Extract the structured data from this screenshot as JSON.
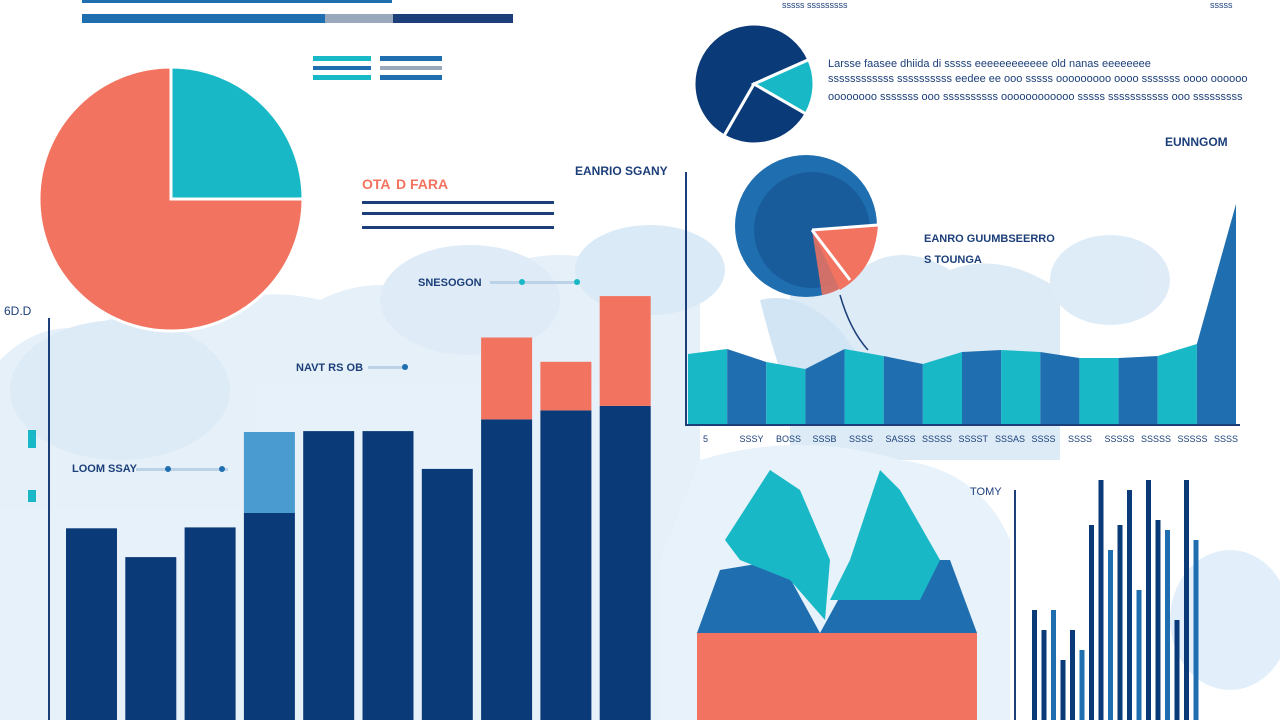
{
  "colors": {
    "navy": "#0b3a78",
    "blue": "#1f6fb0",
    "sky": "#4a9bd0",
    "teal": "#19b8c6",
    "coral": "#f2735f",
    "haze": "#d9e9f6"
  },
  "labels": {
    "top_right_text": "sssss sssssssss",
    "top_right_mark": "sssss",
    "pie_small_text_1": "Larsse faasee dhiida di sssss eeeeeeeeeeee old nanas eeeeeeee",
    "pie_small_text_2": "ssssssssssss ssssssssss eedee ee ooo sssss ooooooooo oooo sssssss oooo oooooo",
    "pie_small_text_3": "oooooooo sssssss ooo ssssssssss oooooooooooo sssss sssssssssss ooo sssssssss",
    "legend_red_title_a": "OTA",
    "legend_red_title_b": "D FARA",
    "mid_title": "EANRIO SGANY",
    "mid_label_1": "SNESOGON",
    "mid_label_2": "NAVT RS OB",
    "left_label": "LOOM SSAY",
    "y_axis_top": "6D.D",
    "area_title": "EUNNGOM",
    "area_label_1": "EANRO GUUMBSEERRO",
    "area_label_2": "S TOUNGA",
    "small_bar_label": "TOMY"
  },
  "chart_data": [
    {
      "type": "pie",
      "slices": [
        {
          "label": "",
          "value": 75,
          "color": "#f2735f"
        },
        {
          "label": "",
          "value": 25,
          "color": "#19b8c6"
        }
      ]
    },
    {
      "type": "bar",
      "ytick": "6D.D",
      "categories": [
        "",
        "",
        "",
        "",
        "",
        "",
        "",
        "",
        "",
        ""
      ],
      "series": [
        {
          "values": [
            213,
            181,
            214,
            230,
            321,
            321,
            279,
            334,
            344,
            349
          ]
        },
        {
          "values": [
            0,
            0,
            0,
            90,
            0,
            0,
            0,
            91,
            54,
            122
          ]
        }
      ]
    },
    {
      "type": "pie",
      "slices": [
        {
          "label": "",
          "value": 60,
          "color": "#0b3a78"
        },
        {
          "label": "",
          "value": 15,
          "color": "#19b8c6"
        },
        {
          "label": "",
          "value": 25,
          "color": "#0b3a78"
        }
      ]
    },
    {
      "type": "area",
      "title": "EUNNGOM",
      "categories": [
        "5",
        "SSSY",
        "BOSS",
        "SSSB",
        "SSSS",
        "SASSS",
        "SSSSS",
        "SSSST",
        "SSSAS",
        "SSSS",
        "SSSS",
        "SSSSS",
        "SSSSS",
        "SSSSS",
        "SSSS"
      ],
      "values": [
        70,
        75,
        62,
        55,
        75,
        68,
        60,
        72,
        74,
        72,
        66,
        66,
        68,
        80,
        220
      ]
    },
    {
      "type": "bar",
      "title": "TOMY",
      "values": [
        110,
        90,
        110,
        60,
        90,
        70,
        195,
        240,
        170,
        195,
        230,
        130,
        240,
        200,
        190,
        100,
        240,
        180
      ]
    }
  ]
}
